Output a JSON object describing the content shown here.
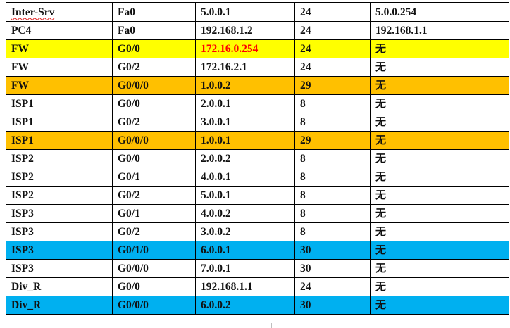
{
  "table": {
    "rows": [
      {
        "device": "Inter-Srv",
        "interface": "Fa0",
        "ip": "5.0.0.1",
        "mask": "24",
        "gateway": "5.0.0.254",
        "highlight": "none"
      },
      {
        "device": "PC4",
        "interface": "Fa0",
        "ip": "192.168.1.2",
        "mask": "24",
        "gateway": "192.168.1.1",
        "highlight": "none"
      },
      {
        "device": "FW",
        "interface": "G0/0",
        "ip": "172.16.0.254",
        "mask": "24",
        "gateway": "无",
        "highlight": "yellow"
      },
      {
        "device": "FW",
        "interface": "G0/2",
        "ip": "172.16.2.1",
        "mask": "24",
        "gateway": "无",
        "highlight": "none"
      },
      {
        "device": "FW",
        "interface": "G0/0/0",
        "ip": "1.0.0.2",
        "mask": "29",
        "gateway": "无",
        "highlight": "orange"
      },
      {
        "device": "ISP1",
        "interface": "G0/0",
        "ip": "2.0.0.1",
        "mask": "8",
        "gateway": "无",
        "highlight": "none"
      },
      {
        "device": "ISP1",
        "interface": "G0/2",
        "ip": "3.0.0.1",
        "mask": "8",
        "gateway": "无",
        "highlight": "none"
      },
      {
        "device": "ISP1",
        "interface": "G0/0/0",
        "ip": "1.0.0.1",
        "mask": "29",
        "gateway": "无",
        "highlight": "orange"
      },
      {
        "device": "ISP2",
        "interface": "G0/0",
        "ip": "2.0.0.2",
        "mask": "8",
        "gateway": "无",
        "highlight": "none"
      },
      {
        "device": "ISP2",
        "interface": "G0/1",
        "ip": "4.0.0.1",
        "mask": "8",
        "gateway": "无",
        "highlight": "none"
      },
      {
        "device": "ISP2",
        "interface": "G0/2",
        "ip": "5.0.0.1",
        "mask": "8",
        "gateway": "无",
        "highlight": "none"
      },
      {
        "device": "ISP3",
        "interface": "G0/1",
        "ip": "4.0.0.2",
        "mask": "8",
        "gateway": "无",
        "highlight": "none"
      },
      {
        "device": "ISP3",
        "interface": "G0/2",
        "ip": "3.0.0.2",
        "mask": "8",
        "gateway": "无",
        "highlight": "none"
      },
      {
        "device": "ISP3",
        "interface": "G0/1/0",
        "ip": "6.0.0.1",
        "mask": "30",
        "gateway": "无",
        "highlight": "blue"
      },
      {
        "device": "ISP3",
        "interface": "G0/0/0",
        "ip": "7.0.0.1",
        "mask": "30",
        "gateway": "无",
        "highlight": "none"
      },
      {
        "device": "Div_R",
        "interface": "G0/0",
        "ip": "192.168.1.1",
        "mask": "24",
        "gateway": "无",
        "highlight": "none"
      },
      {
        "device": "Div_R",
        "interface": "G0/0/0",
        "ip": "6.0.0.2",
        "mask": "30",
        "gateway": "无",
        "highlight": "blue"
      }
    ]
  },
  "colors": {
    "yellow_highlight": "#ffff00",
    "orange_highlight": "#ffc000",
    "blue_highlight": "#00b0f0",
    "red_text": "#ff0000",
    "spellcheck_underline": "#e02020"
  }
}
